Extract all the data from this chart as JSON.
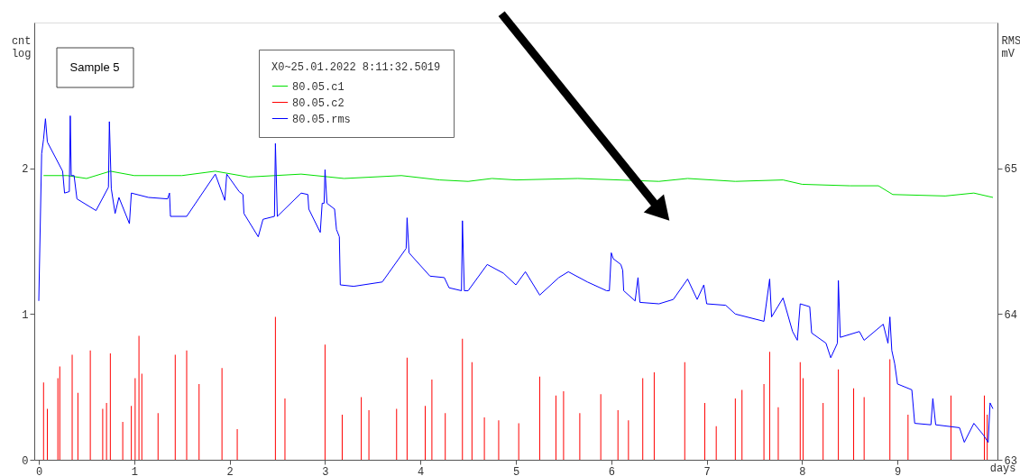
{
  "chart_data": {
    "type": "line",
    "xlabel": "days",
    "ylabel": "cnt log",
    "y2label": "RMS mV",
    "legend_title": "X0~25.01.2022 8:11:32.5019",
    "annotations": [
      "Sample 5"
    ],
    "xlim": [
      0,
      10
    ],
    "xticks": [
      0,
      1,
      2,
      3,
      4,
      5,
      6,
      7,
      8,
      9
    ],
    "ylim": [
      0,
      3
    ],
    "yticks": [
      0,
      1,
      2
    ],
    "y2lim": [
      63,
      66
    ],
    "y2ticks": [
      63,
      64,
      65
    ],
    "grid": false,
    "legend": "top",
    "marker": "none",
    "line_style": "solid",
    "series": [
      {
        "name": "80.05.c1",
        "color": "#00e000",
        "x": [
          0.05,
          0.3,
          0.5,
          0.75,
          1.0,
          1.5,
          1.85,
          2.2,
          2.75,
          3.2,
          3.8,
          4.2,
          4.5,
          4.75,
          5.0,
          5.65,
          6.5,
          6.8,
          7.3,
          7.8,
          8.0,
          8.5,
          8.8,
          8.95,
          9.5,
          9.8,
          10.0
        ],
        "values": [
          1.95,
          1.95,
          1.93,
          1.98,
          1.95,
          1.95,
          1.98,
          1.94,
          1.96,
          1.93,
          1.95,
          1.92,
          1.91,
          1.93,
          1.92,
          1.93,
          1.91,
          1.93,
          1.91,
          1.92,
          1.89,
          1.88,
          1.88,
          1.82,
          1.81,
          1.83,
          1.8
        ]
      },
      {
        "name": "80.05.c2",
        "color": "#ff0000",
        "type": "bar",
        "x": [
          0.05,
          0.09,
          0.2,
          0.22,
          0.35,
          0.41,
          0.54,
          0.67,
          0.71,
          0.75,
          0.88,
          0.97,
          1.01,
          1.05,
          1.08,
          1.25,
          1.43,
          1.55,
          1.68,
          1.92,
          2.08,
          2.48,
          2.58,
          3.0,
          3.18,
          3.38,
          3.46,
          3.75,
          3.86,
          4.05,
          4.12,
          4.26,
          4.44,
          4.54,
          4.67,
          4.82,
          5.03,
          5.25,
          5.42,
          5.5,
          5.67,
          5.89,
          6.07,
          6.18,
          6.33,
          6.45,
          6.77,
          6.98,
          7.1,
          7.3,
          7.37,
          7.6,
          7.66,
          7.75,
          7.98,
          8.01,
          8.22,
          8.38,
          8.54,
          8.65,
          8.92,
          9.11,
          9.56,
          9.91,
          9.94
        ],
        "values": [
          0.53,
          0.35,
          0.56,
          0.64,
          0.72,
          0.46,
          0.75,
          0.35,
          0.39,
          0.73,
          0.26,
          0.37,
          0.56,
          0.85,
          0.59,
          0.32,
          0.72,
          0.75,
          0.52,
          0.63,
          0.21,
          0.98,
          0.42,
          0.79,
          0.31,
          0.43,
          0.34,
          0.35,
          0.7,
          0.37,
          0.55,
          0.32,
          0.83,
          0.67,
          0.29,
          0.27,
          0.25,
          0.57,
          0.44,
          0.47,
          0.32,
          0.45,
          0.34,
          0.27,
          0.56,
          0.6,
          0.67,
          0.39,
          0.23,
          0.42,
          0.48,
          0.52,
          0.74,
          0.36,
          0.67,
          0.56,
          0.39,
          0.62,
          0.49,
          0.43,
          0.69,
          0.31,
          0.44,
          0.44,
          0.31
        ]
      },
      {
        "name": "80.05.rms",
        "color": "#0000ff",
        "axis": "y2",
        "x": [
          0,
          0.03,
          0.05,
          0.07,
          0.09,
          0.25,
          0.27,
          0.32,
          0.33,
          0.34,
          0.37,
          0.4,
          0.6,
          0.73,
          0.74,
          0.76,
          0.8,
          0.84,
          0.95,
          0.97,
          1.15,
          1.35,
          1.37,
          1.38,
          1.55,
          1.85,
          1.95,
          1.97,
          2.1,
          2.14,
          2.15,
          2.3,
          2.35,
          2.47,
          2.48,
          2.5,
          2.75,
          2.82,
          2.83,
          2.95,
          2.97,
          2.99,
          3.0,
          3.02,
          3.1,
          3.12,
          3.15,
          3.16,
          3.3,
          3.6,
          3.85,
          3.86,
          3.88,
          4.1,
          4.25,
          4.3,
          4.43,
          4.44,
          4.46,
          4.5,
          4.7,
          4.87,
          5.0,
          5.1,
          5.25,
          5.45,
          5.55,
          5.75,
          5.95,
          5.98,
          6.0,
          6.02,
          6.1,
          6.12,
          6.13,
          6.25,
          6.28,
          6.3,
          6.5,
          6.65,
          6.8,
          6.9,
          6.97,
          7.0,
          7.2,
          7.3,
          7.6,
          7.66,
          7.68,
          7.8,
          7.9,
          7.95,
          7.98,
          8.08,
          8.1,
          8.25,
          8.3,
          8.37,
          8.38,
          8.4,
          8.6,
          8.65,
          8.85,
          8.9,
          8.92,
          8.94,
          8.97,
          9.0,
          9.15,
          9.18,
          9.35,
          9.37,
          9.4,
          9.65,
          9.7,
          9.8,
          9.9,
          9.95,
          9.97,
          10.0
        ],
        "values": [
          64.09,
          65.1,
          65.2,
          65.34,
          65.18,
          64.98,
          64.83,
          64.84,
          65.36,
          64.95,
          64.95,
          64.79,
          64.71,
          64.87,
          65.32,
          64.86,
          64.69,
          64.8,
          64.62,
          64.83,
          64.8,
          64.79,
          64.83,
          64.67,
          64.67,
          64.96,
          64.78,
          64.96,
          64.84,
          64.82,
          64.69,
          64.53,
          64.65,
          64.67,
          65.17,
          64.67,
          64.83,
          64.82,
          64.72,
          64.56,
          64.76,
          64.76,
          64.99,
          64.76,
          64.72,
          64.58,
          64.53,
          64.2,
          64.19,
          64.22,
          64.45,
          64.66,
          64.42,
          64.26,
          64.25,
          64.18,
          64.16,
          64.64,
          64.16,
          64.16,
          64.34,
          64.28,
          64.2,
          64.29,
          64.13,
          64.25,
          64.29,
          64.22,
          64.16,
          64.16,
          64.42,
          64.38,
          64.34,
          64.3,
          64.16,
          64.09,
          64.25,
          64.08,
          64.07,
          64.1,
          64.24,
          64.1,
          64.2,
          64.07,
          64.06,
          64.0,
          63.95,
          64.24,
          63.98,
          64.11,
          63.88,
          63.82,
          64.07,
          64.05,
          63.87,
          63.8,
          63.7,
          63.8,
          64.23,
          63.84,
          63.88,
          63.82,
          63.93,
          63.8,
          63.98,
          63.75,
          63.66,
          63.52,
          63.48,
          63.25,
          63.24,
          63.42,
          63.24,
          63.22,
          63.12,
          63.25,
          63.17,
          63.12,
          63.39,
          63.35
        ]
      }
    ]
  }
}
